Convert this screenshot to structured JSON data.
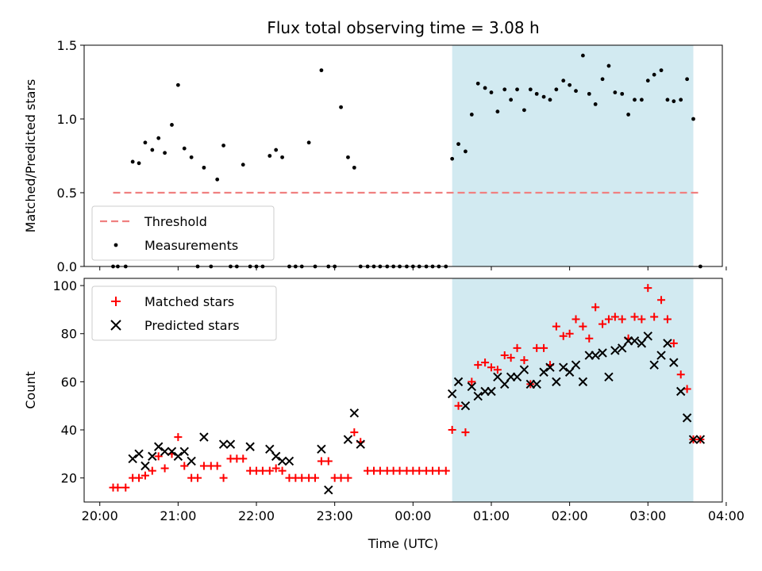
{
  "title": "Flux total observing time = 3.08 h",
  "colors": {
    "highlight": "#add8e6",
    "threshold": "#f08080",
    "measurement": "#000000",
    "matched": "#ff0000",
    "predicted": "#000000"
  },
  "chart_data": [
    {
      "type": "scatter",
      "ylabel": "Matched/Predicted stars",
      "ylim": [
        0,
        1.5
      ],
      "yticks": [
        "0.0",
        "0.5",
        "1.0",
        "1.5"
      ],
      "xlim": [
        -0.2,
        7.95
      ],
      "highlight_band": [
        4.5,
        7.58
      ],
      "threshold": {
        "name": "Threshold",
        "value": 0.5,
        "x": [
          0.17,
          7.65
        ]
      },
      "legend": {
        "position": "lower-left",
        "entries": [
          "Threshold",
          "Measurements"
        ]
      },
      "series": [
        {
          "name": "Measurements",
          "x": [
            0.17,
            0.23,
            0.33,
            0.42,
            0.5,
            0.58,
            0.67,
            0.75,
            0.83,
            0.92,
            1.0,
            1.08,
            1.17,
            1.25,
            1.33,
            1.42,
            1.5,
            1.58,
            1.67,
            1.75,
            1.83,
            1.92,
            2.0,
            2.08,
            2.17,
            2.25,
            2.33,
            2.42,
            2.5,
            2.58,
            2.67,
            2.75,
            2.83,
            2.92,
            3.0,
            3.08,
            3.17,
            3.25,
            3.33,
            3.42,
            3.5,
            3.58,
            3.67,
            3.75,
            3.83,
            3.92,
            4.0,
            4.08,
            4.17,
            4.25,
            4.33,
            4.42,
            4.5,
            4.58,
            4.67,
            4.75,
            4.83,
            4.92,
            5.0,
            5.08,
            5.17,
            5.25,
            5.33,
            5.42,
            5.5,
            5.58,
            5.67,
            5.75,
            5.83,
            5.92,
            6.0,
            6.08,
            6.17,
            6.25,
            6.33,
            6.42,
            6.5,
            6.58,
            6.67,
            6.75,
            6.83,
            6.92,
            7.0,
            7.08,
            7.17,
            7.25,
            7.33,
            7.42,
            7.5,
            7.58,
            7.67
          ],
          "y": [
            0,
            0,
            0,
            0.71,
            0.7,
            0.84,
            0.79,
            0.87,
            0.77,
            0.96,
            1.23,
            0.8,
            0.74,
            0,
            0.67,
            0,
            0.59,
            0.82,
            0,
            0,
            0.69,
            0,
            0,
            0,
            0.75,
            0.79,
            0.74,
            0,
            0,
            0,
            0.84,
            0,
            1.33,
            0,
            0,
            1.08,
            0.74,
            0.67,
            0,
            0,
            0,
            0,
            0,
            0,
            0,
            0,
            0,
            0,
            0,
            0,
            0,
            0,
            0.73,
            0.83,
            0.78,
            1.03,
            1.24,
            1.21,
            1.18,
            1.05,
            1.2,
            1.13,
            1.2,
            1.06,
            1.2,
            1.17,
            1.15,
            1.13,
            1.2,
            1.26,
            1.23,
            1.19,
            1.43,
            1.17,
            1.1,
            1.27,
            1.36,
            1.18,
            1.17,
            1.03,
            1.13,
            1.13,
            1.26,
            1.3,
            1.33,
            1.13,
            1.12,
            1.13,
            1.27,
            1.0,
            0
          ]
        }
      ]
    },
    {
      "type": "scatter",
      "xlabel": "Time (UTC)",
      "ylabel": "Count",
      "ylim": [
        10,
        103
      ],
      "yticks": [
        "20",
        "40",
        "60",
        "80",
        "100"
      ],
      "xlim": [
        -0.2,
        7.95
      ],
      "xticks": [
        "20:00",
        "21:00",
        "22:00",
        "23:00",
        "00:00",
        "01:00",
        "02:00",
        "03:00",
        "04:00"
      ],
      "highlight_band": [
        4.5,
        7.58
      ],
      "legend": {
        "position": "upper-left",
        "entries": [
          "Matched stars",
          "Predicted stars"
        ]
      },
      "series": [
        {
          "name": "Matched stars",
          "marker": "+",
          "x": [
            0.17,
            0.23,
            0.33,
            0.42,
            0.5,
            0.58,
            0.67,
            0.75,
            0.83,
            0.92,
            1.0,
            1.08,
            1.17,
            1.25,
            1.33,
            1.42,
            1.5,
            1.58,
            1.67,
            1.75,
            1.83,
            1.92,
            2.0,
            2.08,
            2.17,
            2.25,
            2.33,
            2.42,
            2.5,
            2.58,
            2.67,
            2.75,
            2.83,
            2.92,
            3.0,
            3.08,
            3.17,
            3.25,
            3.33,
            3.42,
            3.5,
            3.58,
            3.67,
            3.75,
            3.83,
            3.92,
            4.0,
            4.08,
            4.17,
            4.25,
            4.33,
            4.42,
            4.5,
            4.58,
            4.67,
            4.75,
            4.83,
            4.92,
            5.0,
            5.08,
            5.17,
            5.25,
            5.33,
            5.42,
            5.5,
            5.58,
            5.67,
            5.75,
            5.83,
            5.92,
            6.0,
            6.08,
            6.17,
            6.25,
            6.33,
            6.42,
            6.5,
            6.58,
            6.67,
            6.75,
            6.83,
            6.92,
            7.0,
            7.08,
            7.17,
            7.25,
            7.33,
            7.42,
            7.5,
            7.58,
            7.67
          ],
          "y": [
            16,
            16,
            16,
            20,
            20,
            21,
            23,
            29,
            24,
            30,
            37,
            25,
            20,
            20,
            25,
            25,
            25,
            20,
            28,
            28,
            28,
            23,
            23,
            23,
            23,
            24,
            23,
            20,
            20,
            20,
            20,
            20,
            27,
            27,
            20,
            20,
            20,
            39,
            35,
            23,
            23,
            23,
            23,
            23,
            23,
            23,
            23,
            23,
            23,
            23,
            23,
            23,
            40,
            50,
            39,
            60,
            67,
            68,
            66,
            65,
            71,
            70,
            74,
            69,
            59,
            74,
            74,
            67,
            83,
            79,
            80,
            86,
            83,
            78,
            91,
            84,
            86,
            87,
            86,
            78,
            87,
            86,
            99,
            87,
            94,
            86,
            76,
            63,
            57,
            36,
            36
          ]
        },
        {
          "name": "Predicted stars",
          "marker": "x",
          "x": [
            0.42,
            0.5,
            0.58,
            0.67,
            0.75,
            0.83,
            0.92,
            1.0,
            1.08,
            1.17,
            1.33,
            1.58,
            1.67,
            1.92,
            2.17,
            2.25,
            2.33,
            2.42,
            2.83,
            2.92,
            3.17,
            3.25,
            3.33,
            4.5,
            4.58,
            4.67,
            4.75,
            4.83,
            4.92,
            5.0,
            5.08,
            5.17,
            5.25,
            5.33,
            5.42,
            5.5,
            5.58,
            5.67,
            5.75,
            5.83,
            5.92,
            6.0,
            6.08,
            6.17,
            6.25,
            6.33,
            6.42,
            6.5,
            6.58,
            6.67,
            6.75,
            6.83,
            6.92,
            7.0,
            7.08,
            7.17,
            7.25,
            7.33,
            7.42,
            7.5,
            7.58,
            7.67
          ],
          "y": [
            28,
            30,
            25,
            29,
            33,
            31,
            31,
            29,
            31,
            27,
            37,
            34,
            34,
            33,
            32,
            29,
            27,
            27,
            32,
            15,
            36,
            47,
            34,
            55,
            60,
            50,
            58,
            54,
            56,
            56,
            62,
            59,
            62,
            62,
            65,
            59,
            59,
            64,
            66,
            60,
            66,
            64,
            67,
            60,
            71,
            71,
            72,
            62,
            73,
            74,
            77,
            77,
            76,
            79,
            67,
            71,
            76,
            68,
            56,
            45,
            36,
            36
          ]
        }
      ]
    }
  ]
}
